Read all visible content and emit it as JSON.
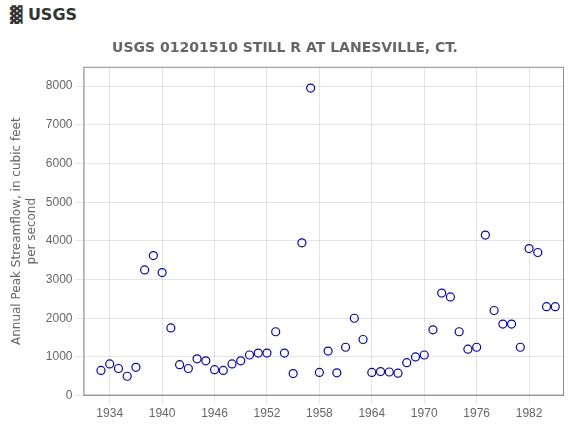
{
  "chart_data": {
    "type": "scatter",
    "title": "USGS 01201510 STILL R AT LANESVILLE, CT.",
    "annotations": [
      "▓ USGS"
    ],
    "ylabel": "Annual Peak Streamflow, in cubic feet\nper second",
    "x": [
      1933,
      1934,
      1935,
      1936,
      1937,
      1938,
      1939,
      1940,
      1941,
      1942,
      1943,
      1944,
      1945,
      1946,
      1947,
      1948,
      1949,
      1950,
      1951,
      1952,
      1953,
      1954,
      1955,
      1956,
      1957,
      1958,
      1959,
      1960,
      1961,
      1962,
      1963,
      1964,
      1965,
      1966,
      1967,
      1968,
      1969,
      1970,
      1971,
      1972,
      1973,
      1974,
      1975,
      1976,
      1977,
      1978,
      1979,
      1980,
      1981,
      1982,
      1983,
      1984,
      1985
    ],
    "values": [
      650,
      820,
      700,
      500,
      730,
      3250,
      3620,
      3180,
      1750,
      800,
      700,
      950,
      900,
      670,
      650,
      820,
      900,
      1050,
      1100,
      1100,
      1650,
      1100,
      570,
      3950,
      7950,
      600,
      1150,
      590,
      1250,
      2000,
      1450,
      600,
      620,
      610,
      580,
      850,
      1000,
      1050,
      1700,
      2650,
      2550,
      1650,
      1200,
      1250,
      4150,
      2200,
      1850,
      1850,
      1250,
      3800,
      3700,
      2300,
      2300
    ],
    "xlim": [
      1931,
      1986
    ],
    "xticks": [
      1934,
      1940,
      1946,
      1952,
      1958,
      1964,
      1970,
      1976,
      1982
    ],
    "ylim": [
      0,
      8500
    ],
    "yticks": [
      0,
      1000,
      2000,
      3000,
      4000,
      5000,
      6000,
      7000,
      8000
    ],
    "color": "#0000CC",
    "marker": "circle",
    "grid": true
  }
}
